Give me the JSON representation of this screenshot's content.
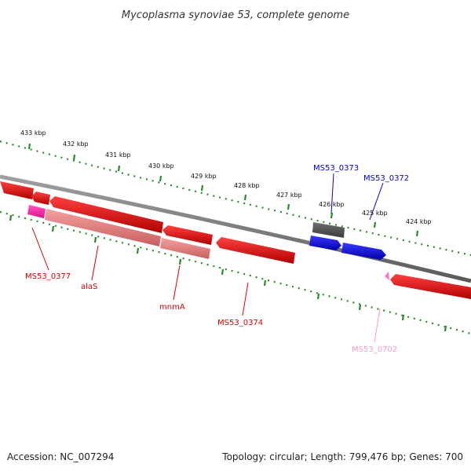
{
  "title": "Mycoplasma synoviae 53, complete genome",
  "footer": {
    "accession": "Accession: NC_007294",
    "summary": "Topology: circular; Length: 799,476 bp; Genes: 700"
  },
  "scale": {
    "unit": "kbp",
    "ticks": [
      "433 kbp",
      "432 kbp",
      "431 kbp",
      "430 kbp",
      "429 kbp",
      "428 kbp",
      "427 kbp",
      "426 kbp",
      "425 kbp",
      "424 kbp"
    ]
  },
  "colors": {
    "backbone": "#808080",
    "gc_dots": "#2a8a2a",
    "forward_gene": "#0000dd",
    "reverse_gene": "#ee0000",
    "rna_gene": "#ff66aa",
    "other_feature": "#555555",
    "cds_pink": "#ff3399",
    "cds_light": "#f08080"
  },
  "gene_labels": {
    "ms53_0373": "MS53_0373",
    "ms53_0372": "MS53_0372",
    "ms53_0377": "MS53_0377",
    "alas": "alaS",
    "mnma": "mnmA",
    "ms53_0374": "MS53_0374",
    "ms53_0702": "MS53_0702"
  }
}
